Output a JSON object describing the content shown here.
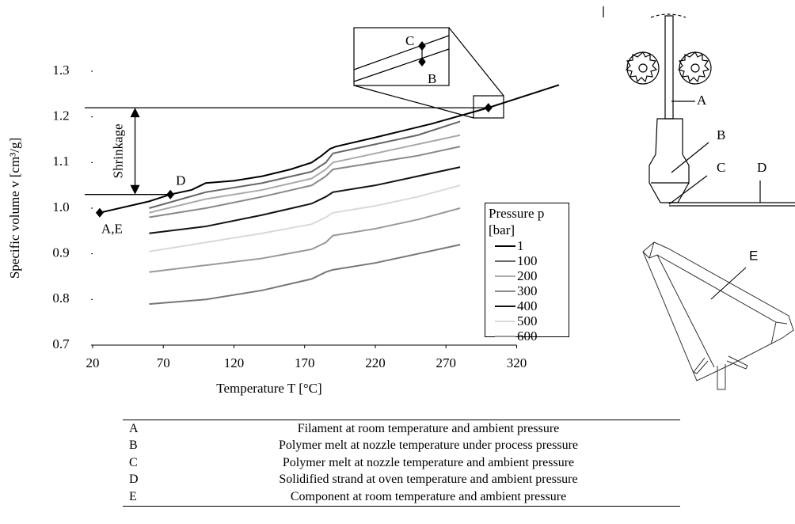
{
  "chart_data": {
    "type": "line",
    "xlabel": "Temperature T [°C]",
    "ylabel": "Specific volume v [cm³/g]",
    "xlim": [
      20,
      350
    ],
    "ylim": [
      0.7,
      1.3
    ],
    "xticks": [
      20,
      70,
      120,
      170,
      220,
      270,
      320
    ],
    "yticks": [
      0.7,
      0.8,
      0.9,
      {
        "value": 1,
        "label": "1.0"
      },
      1.1,
      1.2,
      1.3
    ],
    "legend_title": "Pressure p [bar]",
    "x": [
      60,
      100,
      140,
      175,
      185,
      190,
      220,
      250,
      280
    ],
    "series": [
      {
        "name": "1",
        "color": "#000000",
        "x": [
          25,
          60,
          75,
          90,
          100,
          120,
          140,
          160,
          175,
          182,
          188,
          192,
          220,
          260,
          300,
          350
        ],
        "values": [
          0.99,
          1.015,
          1.03,
          1.04,
          1.055,
          1.06,
          1.07,
          1.085,
          1.1,
          1.115,
          1.13,
          1.135,
          1.155,
          1.185,
          1.22,
          1.27
        ]
      },
      {
        "name": "100",
        "color": "#666666",
        "values": [
          1.0,
          1.035,
          1.055,
          1.08,
          1.1,
          1.12,
          1.14,
          1.16,
          1.19
        ]
      },
      {
        "name": "200",
        "color": "#aaaaaa",
        "values": [
          0.99,
          1.02,
          1.04,
          1.065,
          1.085,
          1.1,
          1.12,
          1.14,
          1.16
        ]
      },
      {
        "name": "300",
        "color": "#888888",
        "values": [
          0.98,
          1.0,
          1.025,
          1.05,
          1.07,
          1.085,
          1.1,
          1.115,
          1.135
        ]
      },
      {
        "name": "400",
        "color": "#111111",
        "values": [
          0.945,
          0.96,
          0.985,
          1.01,
          1.025,
          1.035,
          1.05,
          1.07,
          1.09
        ]
      },
      {
        "name": "500",
        "color": "#d9d9d9",
        "values": [
          0.905,
          0.925,
          0.945,
          0.965,
          0.98,
          0.99,
          1.005,
          1.025,
          1.05
        ]
      },
      {
        "name": "600",
        "color": "#999999",
        "values": [
          0.86,
          0.875,
          0.89,
          0.91,
          0.925,
          0.94,
          0.955,
          0.975,
          1.0
        ]
      },
      {
        "color": "#777777",
        "values": [
          0.79,
          0.8,
          0.82,
          0.845,
          0.86,
          0.865,
          0.88,
          0.9,
          0.92
        ]
      }
    ],
    "points": [
      {
        "label": "A,E",
        "x": 25,
        "y": 0.99
      },
      {
        "label": "D",
        "x": 75,
        "y": 1.03
      },
      {
        "x": 300,
        "y": 1.22
      }
    ],
    "shrinkage": {
      "label": "Shrinkage",
      "x": 50,
      "from": 1.03,
      "to": 1.22
    },
    "inset_labels": [
      "C",
      "B"
    ]
  },
  "diagrams": {
    "printer_labels": [
      "A",
      "B",
      "C",
      "D"
    ],
    "part_label": "E"
  },
  "table": {
    "rows": [
      [
        "A",
        "Filament at room temperature and ambient pressure"
      ],
      [
        "B",
        "Polymer melt at nozzle temperature under process pressure"
      ],
      [
        "C",
        "Polymer melt at nozzle temperature and ambient pressure"
      ],
      [
        "D",
        "Solidified strand at oven temperature and ambient pressure"
      ],
      [
        "E",
        "Component at room temperature and ambient pressure"
      ]
    ]
  }
}
